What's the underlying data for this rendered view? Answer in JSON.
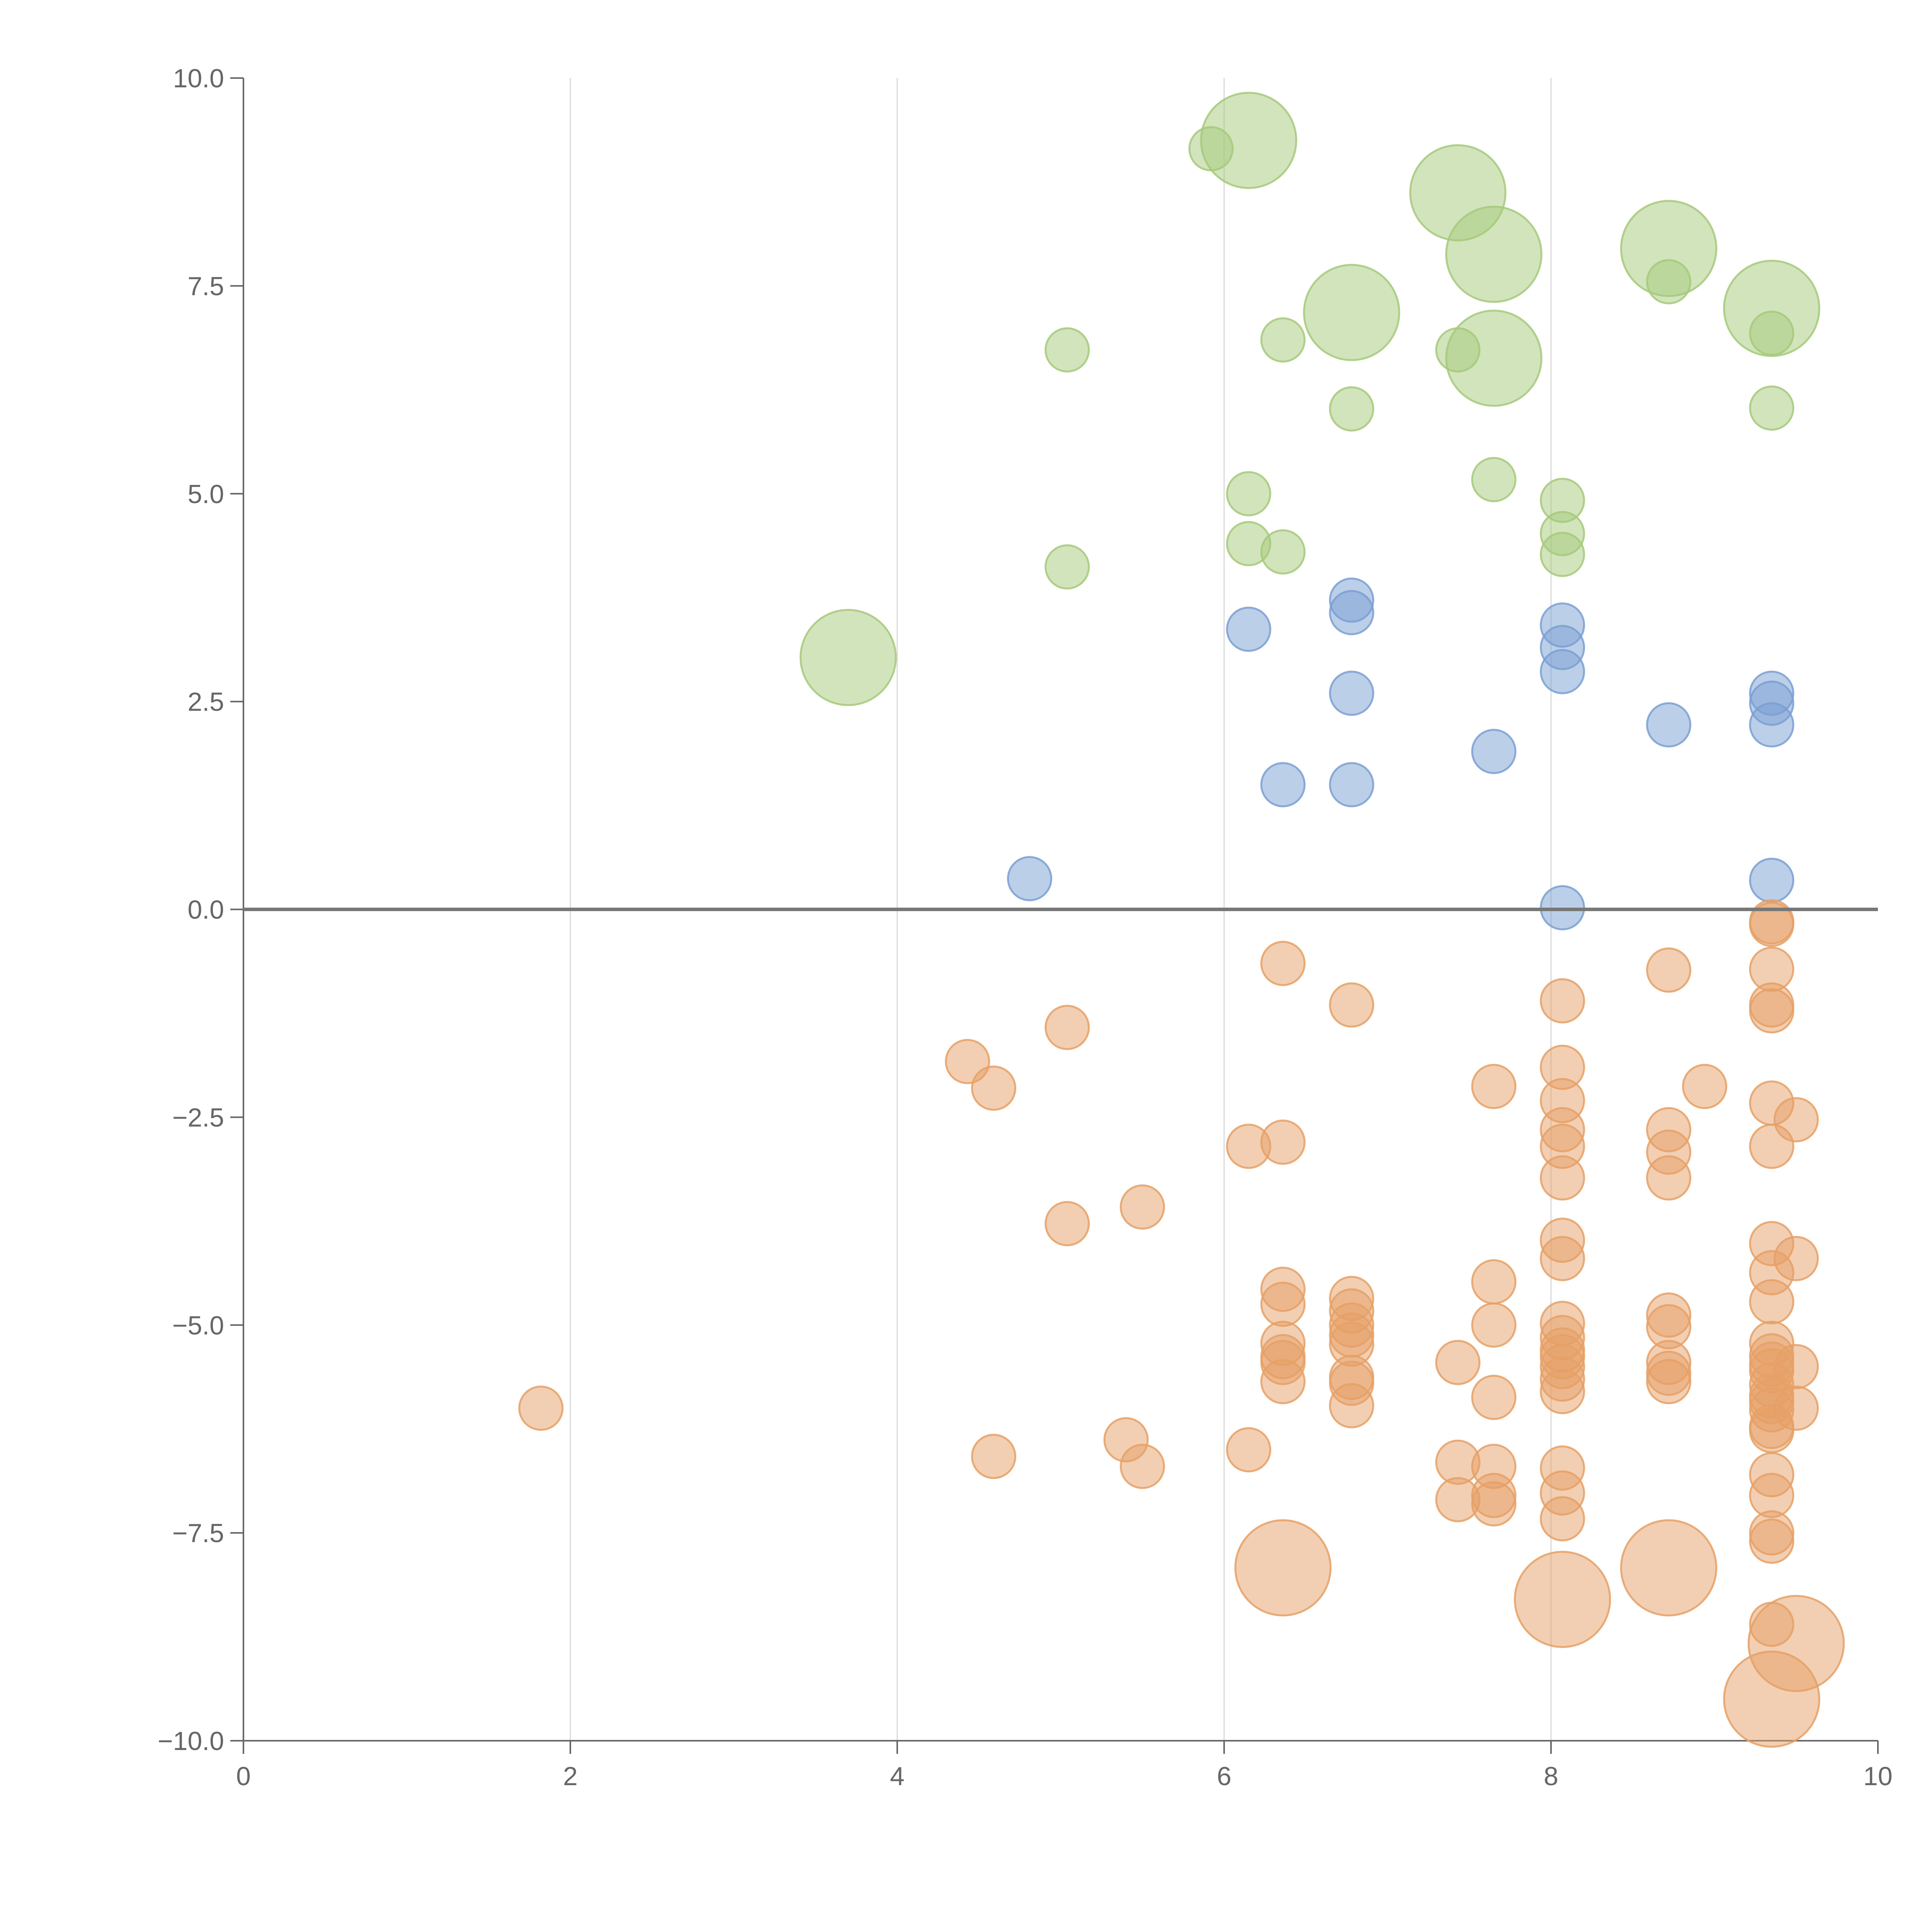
{
  "chart_data": {
    "type": "scatter",
    "title": "",
    "xlabel": "",
    "ylabel": "",
    "xlim": [
      0,
      10
    ],
    "ylim": [
      -10,
      10
    ],
    "x_ticks": [
      0,
      2,
      4,
      6,
      8,
      10
    ],
    "x_tick_labels": [
      "0",
      "2",
      "4",
      "6",
      "8",
      "10"
    ],
    "y_ticks": [
      10,
      7.5,
      5,
      2.5,
      0,
      -2.5,
      -5,
      -7.5,
      -10
    ],
    "y_tick_labels": [
      "10.0",
      "7.5",
      "5.0",
      "2.5",
      "0.0",
      "−2.5",
      "−5.0",
      "−7.5",
      "−10.0"
    ],
    "vertical_gridlines_at": [
      2,
      4,
      6,
      8
    ],
    "reference_line_y": 0,
    "series": [
      {
        "name": "green",
        "color": "#a6c97a",
        "points": [
          [
            5.92,
            9.15,
            1
          ],
          [
            6.15,
            9.25,
            2.2
          ],
          [
            7.43,
            8.62,
            2.2
          ],
          [
            7.65,
            7.88,
            2.2
          ],
          [
            8.72,
            7.95,
            2.2
          ],
          [
            8.72,
            7.55,
            1
          ],
          [
            6.78,
            7.18,
            2.2
          ],
          [
            9.35,
            7.23,
            2.2
          ],
          [
            9.35,
            6.93,
            1
          ],
          [
            5.04,
            6.73,
            1
          ],
          [
            6.36,
            6.85,
            1
          ],
          [
            7.43,
            6.73,
            1
          ],
          [
            7.65,
            6.63,
            2.2
          ],
          [
            6.78,
            6.02,
            1
          ],
          [
            9.35,
            6.03,
            1
          ],
          [
            7.65,
            5.17,
            1
          ],
          [
            6.15,
            5.0,
            1
          ],
          [
            8.07,
            4.92,
            1
          ],
          [
            8.07,
            4.52,
            1
          ],
          [
            6.15,
            4.4,
            1
          ],
          [
            6.36,
            4.3,
            1
          ],
          [
            8.07,
            4.27,
            1
          ],
          [
            5.04,
            4.12,
            1
          ],
          [
            3.7,
            3.03,
            2.2
          ]
        ]
      },
      {
        "name": "blue",
        "color": "#7a9fd4",
        "points": [
          [
            6.78,
            3.72,
            1
          ],
          [
            6.78,
            3.57,
            1
          ],
          [
            6.15,
            3.37,
            1
          ],
          [
            8.07,
            3.42,
            1
          ],
          [
            8.07,
            3.15,
            1
          ],
          [
            8.07,
            2.86,
            1
          ],
          [
            6.78,
            2.6,
            1
          ],
          [
            9.35,
            2.6,
            1
          ],
          [
            9.35,
            2.48,
            1
          ],
          [
            8.72,
            2.22,
            1
          ],
          [
            9.35,
            2.22,
            1
          ],
          [
            7.65,
            1.9,
            1
          ],
          [
            6.36,
            1.5,
            1
          ],
          [
            6.78,
            1.5,
            1
          ],
          [
            4.81,
            0.37,
            1
          ],
          [
            9.35,
            0.35,
            1
          ],
          [
            8.07,
            0.02,
            1
          ]
        ]
      },
      {
        "name": "orange",
        "color": "#e6a065",
        "points": [
          [
            9.35,
            -0.15,
            1
          ],
          [
            9.35,
            -0.18,
            1
          ],
          [
            6.36,
            -0.65,
            1
          ],
          [
            8.72,
            -0.73,
            1
          ],
          [
            9.35,
            -0.72,
            1
          ],
          [
            8.07,
            -1.1,
            1
          ],
          [
            6.78,
            -1.15,
            1
          ],
          [
            9.35,
            -1.15,
            1
          ],
          [
            9.35,
            -1.22,
            1
          ],
          [
            5.04,
            -1.42,
            1
          ],
          [
            4.43,
            -1.83,
            1
          ],
          [
            8.07,
            -1.9,
            1
          ],
          [
            4.59,
            -2.15,
            1
          ],
          [
            7.65,
            -2.13,
            1
          ],
          [
            8.94,
            -2.13,
            1
          ],
          [
            8.07,
            -2.3,
            1
          ],
          [
            9.35,
            -2.33,
            1
          ],
          [
            9.5,
            -2.53,
            1
          ],
          [
            8.07,
            -2.65,
            1
          ],
          [
            8.72,
            -2.65,
            1
          ],
          [
            6.15,
            -2.85,
            1
          ],
          [
            6.36,
            -2.8,
            1
          ],
          [
            8.07,
            -2.85,
            1
          ],
          [
            9.35,
            -2.85,
            1
          ],
          [
            8.72,
            -2.92,
            1
          ],
          [
            8.07,
            -3.23,
            1
          ],
          [
            8.72,
            -3.23,
            1
          ],
          [
            5.5,
            -3.58,
            1
          ],
          [
            5.04,
            -3.78,
            1
          ],
          [
            8.07,
            -3.98,
            1
          ],
          [
            9.35,
            -4.02,
            1
          ],
          [
            8.07,
            -4.2,
            1
          ],
          [
            9.5,
            -4.2,
            1
          ],
          [
            9.35,
            -4.37,
            1
          ],
          [
            7.65,
            -4.48,
            1
          ],
          [
            6.36,
            -4.57,
            1
          ],
          [
            6.78,
            -4.68,
            1
          ],
          [
            6.36,
            -4.75,
            1
          ],
          [
            9.35,
            -4.72,
            1
          ],
          [
            6.78,
            -4.83,
            1
          ],
          [
            8.72,
            -4.88,
            1
          ],
          [
            6.78,
            -5.0,
            1
          ],
          [
            8.07,
            -4.98,
            1
          ],
          [
            7.65,
            -5.0,
            1
          ],
          [
            8.72,
            -5.02,
            1
          ],
          [
            6.78,
            -5.12,
            1
          ],
          [
            8.07,
            -5.15,
            1
          ],
          [
            6.36,
            -5.22,
            1
          ],
          [
            6.78,
            -5.23,
            1
          ],
          [
            9.35,
            -5.22,
            1
          ],
          [
            8.07,
            -5.3,
            1
          ],
          [
            6.36,
            -5.38,
            1
          ],
          [
            8.07,
            -5.38,
            1
          ],
          [
            9.35,
            -5.37,
            1
          ],
          [
            6.36,
            -5.45,
            1
          ],
          [
            7.43,
            -5.45,
            1
          ],
          [
            8.72,
            -5.45,
            1
          ],
          [
            9.35,
            -5.47,
            1
          ],
          [
            8.07,
            -5.5,
            1
          ],
          [
            9.5,
            -5.5,
            1
          ],
          [
            9.35,
            -5.55,
            1
          ],
          [
            8.72,
            -5.58,
            1
          ],
          [
            6.78,
            -5.63,
            1
          ],
          [
            8.07,
            -5.65,
            1
          ],
          [
            6.36,
            -5.68,
            1
          ],
          [
            6.78,
            -5.7,
            1
          ],
          [
            8.72,
            -5.68,
            1
          ],
          [
            9.35,
            -5.72,
            1
          ],
          [
            8.07,
            -5.8,
            1
          ],
          [
            7.65,
            -5.87,
            1
          ],
          [
            9.35,
            -5.85,
            1
          ],
          [
            9.35,
            -5.92,
            1
          ],
          [
            6.78,
            -5.97,
            1
          ],
          [
            1.82,
            -6.0,
            1
          ],
          [
            9.5,
            -6.0,
            1
          ],
          [
            9.35,
            -6.02,
            1
          ],
          [
            9.35,
            -6.22,
            1
          ],
          [
            9.35,
            -6.27,
            1
          ],
          [
            5.4,
            -6.38,
            1
          ],
          [
            6.15,
            -6.5,
            1
          ],
          [
            4.59,
            -6.58,
            1
          ],
          [
            7.43,
            -6.65,
            1
          ],
          [
            5.5,
            -6.7,
            1
          ],
          [
            7.65,
            -6.7,
            1
          ],
          [
            8.07,
            -6.72,
            1
          ],
          [
            9.35,
            -6.8,
            1
          ],
          [
            8.07,
            -7.02,
            1
          ],
          [
            7.65,
            -7.05,
            1
          ],
          [
            9.35,
            -7.05,
            1
          ],
          [
            7.43,
            -7.1,
            1
          ],
          [
            7.65,
            -7.15,
            1
          ],
          [
            8.07,
            -7.33,
            1
          ],
          [
            9.35,
            -7.5,
            1
          ],
          [
            9.35,
            -7.6,
            1
          ],
          [
            6.36,
            -7.92,
            2.2
          ],
          [
            8.72,
            -7.92,
            2.2
          ],
          [
            8.07,
            -8.3,
            2.2
          ],
          [
            9.35,
            -8.6,
            1
          ],
          [
            9.5,
            -8.83,
            2.2
          ],
          [
            9.35,
            -9.5,
            2.2
          ]
        ]
      }
    ]
  }
}
